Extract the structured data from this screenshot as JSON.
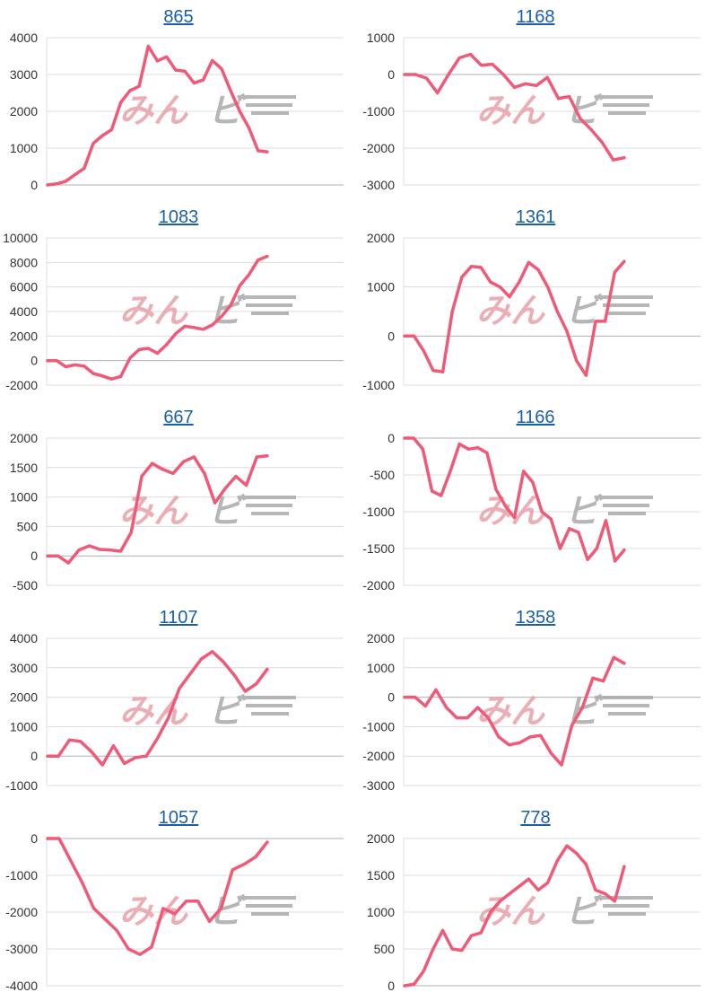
{
  "series_color": "#ef5a78",
  "watermark": {
    "left_text": "みん",
    "right_text": "ビ",
    "left_color": "#e8a0a8",
    "right_color": "#aaaaaa"
  },
  "chart_data": [
    {
      "type": "line",
      "title": "865",
      "yticks": [
        0,
        1000,
        2000,
        3000,
        4000
      ],
      "ylim": [
        0,
        4000
      ],
      "values": [
        0,
        30,
        100,
        280,
        450,
        1130,
        1340,
        1500,
        2240,
        2560,
        2680,
        3770,
        3370,
        3480,
        3120,
        3090,
        2770,
        2850,
        3380,
        3160,
        2560,
        2000,
        1550,
        930,
        900
      ]
    },
    {
      "type": "line",
      "title": "1168",
      "yticks": [
        1000,
        0,
        -1000,
        -2000,
        -3000
      ],
      "ylim": [
        -3000,
        1000
      ],
      "values": [
        0,
        0,
        -100,
        -500,
        0,
        450,
        550,
        250,
        280,
        0,
        -350,
        -250,
        -300,
        -80,
        -650,
        -600,
        -1200,
        -1500,
        -1850,
        -2320,
        -2260
      ]
    },
    {
      "type": "line",
      "title": "1083",
      "yticks": [
        10000,
        8000,
        6000,
        4000,
        2000,
        0,
        -2000
      ],
      "ylim": [
        -2000,
        10000
      ],
      "values": [
        0,
        0,
        -500,
        -350,
        -450,
        -1050,
        -1250,
        -1500,
        -1300,
        200,
        900,
        1000,
        600,
        1300,
        2200,
        2800,
        2700,
        2550,
        2900,
        3600,
        4500,
        6100,
        7000,
        8200,
        8500
      ]
    },
    {
      "type": "line",
      "title": "1361",
      "yticks": [
        2000,
        1000,
        0,
        -1000
      ],
      "ylim": [
        -1000,
        2000
      ],
      "values": [
        0,
        0,
        -300,
        -700,
        -730,
        500,
        1200,
        1420,
        1400,
        1100,
        1000,
        800,
        1100,
        1500,
        1350,
        1000,
        500,
        100,
        -500,
        -800,
        300,
        300,
        1300,
        1520
      ]
    },
    {
      "type": "line",
      "title": "667",
      "yticks": [
        2000,
        1500,
        1000,
        500,
        0,
        -500
      ],
      "ylim": [
        -500,
        2000
      ],
      "values": [
        0,
        0,
        -120,
        100,
        170,
        110,
        100,
        80,
        400,
        1350,
        1570,
        1470,
        1400,
        1600,
        1680,
        1400,
        900,
        1150,
        1350,
        1200,
        1680,
        1700
      ]
    },
    {
      "type": "line",
      "title": "1166",
      "yticks": [
        0,
        -500,
        -1000,
        -1500,
        -2000
      ],
      "ylim": [
        -2000,
        0
      ],
      "values": [
        0,
        0,
        -150,
        -720,
        -780,
        -450,
        -80,
        -150,
        -130,
        -200,
        -700,
        -920,
        -1080,
        -450,
        -600,
        -1000,
        -1100,
        -1500,
        -1230,
        -1280,
        -1650,
        -1500,
        -1120,
        -1670,
        -1520
      ]
    },
    {
      "type": "line",
      "title": "1107",
      "yticks": [
        4000,
        3000,
        2000,
        1000,
        0,
        -1000
      ],
      "ylim": [
        -1000,
        4000
      ],
      "values": [
        0,
        0,
        550,
        500,
        150,
        -300,
        350,
        -250,
        -50,
        0,
        600,
        1300,
        2300,
        2800,
        3300,
        3550,
        3200,
        2750,
        2200,
        2450,
        2950
      ]
    },
    {
      "type": "line",
      "title": "1358",
      "yticks": [
        2000,
        1000,
        0,
        -1000,
        -2000,
        -3000
      ],
      "ylim": [
        -3000,
        2000
      ],
      "values": [
        0,
        0,
        -300,
        250,
        -350,
        -700,
        -700,
        -350,
        -700,
        -1350,
        -1620,
        -1550,
        -1350,
        -1300,
        -1900,
        -2300,
        -950,
        -350,
        650,
        550,
        1350,
        1150
      ]
    },
    {
      "type": "line",
      "title": "1057",
      "yticks": [
        0,
        -1000,
        -2000,
        -3000,
        -4000
      ],
      "ylim": [
        -4000,
        0
      ],
      "values": [
        0,
        0,
        -600,
        -1200,
        -1900,
        -2200,
        -2500,
        -3000,
        -3150,
        -2950,
        -1900,
        -2050,
        -1700,
        -1700,
        -2250,
        -1900,
        -850,
        -700,
        -500,
        -100
      ]
    },
    {
      "type": "line",
      "title": "778",
      "yticks": [
        2000,
        1500,
        1000,
        500,
        0
      ],
      "ylim": [
        0,
        2000
      ],
      "values": [
        0,
        20,
        200,
        500,
        750,
        500,
        480,
        680,
        720,
        1000,
        1150,
        1250,
        1350,
        1450,
        1300,
        1400,
        1700,
        1900,
        1800,
        1650,
        1300,
        1250,
        1150,
        1620
      ]
    }
  ]
}
